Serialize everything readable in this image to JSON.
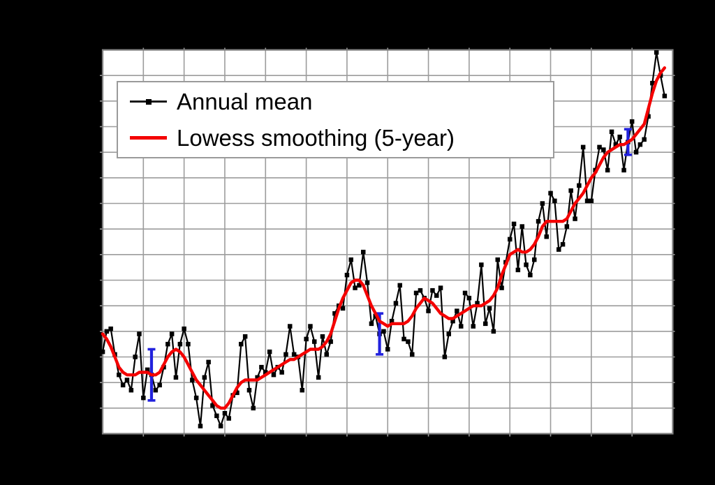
{
  "window": {
    "background": "#000000"
  },
  "colors": {
    "page_bg": "#000000",
    "plot_bg": "#ffffff",
    "grid": "#9c9c9c",
    "frame": "#7f7f7f",
    "annual": "#000000",
    "lowess": "#f40000",
    "error_bar": "#2222dd"
  },
  "chart_data": {
    "type": "line",
    "grid": true,
    "legend_position": "top-left",
    "x_range": [
      1880,
      2020
    ],
    "x_grid_step": 10,
    "y_range": [
      -0.5,
      1.0
    ],
    "y_grid_step": 0.1,
    "x": [
      1880,
      1881,
      1882,
      1883,
      1884,
      1885,
      1886,
      1887,
      1888,
      1889,
      1890,
      1891,
      1892,
      1893,
      1894,
      1895,
      1896,
      1897,
      1898,
      1899,
      1900,
      1901,
      1902,
      1903,
      1904,
      1905,
      1906,
      1907,
      1908,
      1909,
      1910,
      1911,
      1912,
      1913,
      1914,
      1915,
      1916,
      1917,
      1918,
      1919,
      1920,
      1921,
      1922,
      1923,
      1924,
      1925,
      1926,
      1927,
      1928,
      1929,
      1930,
      1931,
      1932,
      1933,
      1934,
      1935,
      1936,
      1937,
      1938,
      1939,
      1940,
      1941,
      1942,
      1943,
      1944,
      1945,
      1946,
      1947,
      1948,
      1949,
      1950,
      1951,
      1952,
      1953,
      1954,
      1955,
      1956,
      1957,
      1958,
      1959,
      1960,
      1961,
      1962,
      1963,
      1964,
      1965,
      1966,
      1967,
      1968,
      1969,
      1970,
      1971,
      1972,
      1973,
      1974,
      1975,
      1976,
      1977,
      1978,
      1979,
      1980,
      1981,
      1982,
      1983,
      1984,
      1985,
      1986,
      1987,
      1988,
      1989,
      1990,
      1991,
      1992,
      1993,
      1994,
      1995,
      1996,
      1997,
      1998,
      1999,
      2000,
      2001,
      2002,
      2003,
      2004,
      2005,
      2006,
      2007,
      2008,
      2009,
      2010,
      2011,
      2012,
      2013,
      2014,
      2015,
      2016,
      2017,
      2018
    ],
    "series": [
      {
        "name": "Annual mean",
        "color": "#000000",
        "marker": "square",
        "values": [
          -0.18,
          -0.1,
          -0.09,
          -0.19,
          -0.27,
          -0.31,
          -0.29,
          -0.33,
          -0.2,
          -0.11,
          -0.36,
          -0.25,
          -0.27,
          -0.33,
          -0.31,
          -0.24,
          -0.15,
          -0.11,
          -0.28,
          -0.15,
          -0.09,
          -0.15,
          -0.29,
          -0.36,
          -0.47,
          -0.28,
          -0.22,
          -0.39,
          -0.43,
          -0.47,
          -0.42,
          -0.44,
          -0.35,
          -0.34,
          -0.15,
          -0.12,
          -0.33,
          -0.4,
          -0.28,
          -0.24,
          -0.26,
          -0.18,
          -0.27,
          -0.24,
          -0.26,
          -0.19,
          -0.08,
          -0.19,
          -0.2,
          -0.33,
          -0.13,
          -0.08,
          -0.14,
          -0.28,
          -0.12,
          -0.19,
          -0.14,
          -0.03,
          0.0,
          -0.01,
          0.12,
          0.18,
          0.07,
          0.08,
          0.21,
          0.09,
          -0.07,
          -0.04,
          -0.11,
          -0.1,
          -0.17,
          -0.06,
          0.01,
          0.08,
          -0.13,
          -0.14,
          -0.19,
          0.05,
          0.06,
          0.03,
          -0.02,
          0.06,
          0.04,
          0.07,
          -0.2,
          -0.11,
          -0.06,
          -0.02,
          -0.08,
          0.05,
          0.03,
          -0.08,
          0.01,
          0.16,
          -0.07,
          -0.01,
          -0.1,
          0.18,
          0.07,
          0.17,
          0.26,
          0.32,
          0.14,
          0.31,
          0.16,
          0.12,
          0.18,
          0.33,
          0.4,
          0.27,
          0.44,
          0.41,
          0.22,
          0.24,
          0.31,
          0.45,
          0.34,
          0.47,
          0.62,
          0.41,
          0.41,
          0.53,
          0.62,
          0.61,
          0.53,
          0.68,
          0.63,
          0.66,
          0.53,
          0.64,
          0.72,
          0.6,
          0.63,
          0.65,
          0.74,
          0.87,
          0.99,
          0.9,
          0.82
        ]
      },
      {
        "name": "Lowess smoothing (5-year)",
        "color": "#f40000",
        "marker": "none",
        "values": [
          -0.11,
          -0.13,
          -0.16,
          -0.2,
          -0.24,
          -0.26,
          -0.27,
          -0.27,
          -0.27,
          -0.26,
          -0.26,
          -0.26,
          -0.27,
          -0.27,
          -0.26,
          -0.23,
          -0.2,
          -0.18,
          -0.17,
          -0.18,
          -0.2,
          -0.23,
          -0.26,
          -0.29,
          -0.31,
          -0.33,
          -0.35,
          -0.37,
          -0.39,
          -0.4,
          -0.4,
          -0.38,
          -0.35,
          -0.32,
          -0.3,
          -0.29,
          -0.29,
          -0.29,
          -0.29,
          -0.28,
          -0.27,
          -0.26,
          -0.25,
          -0.24,
          -0.23,
          -0.22,
          -0.21,
          -0.21,
          -0.2,
          -0.19,
          -0.18,
          -0.17,
          -0.17,
          -0.17,
          -0.16,
          -0.14,
          -0.11,
          -0.06,
          -0.01,
          0.03,
          0.06,
          0.09,
          0.1,
          0.1,
          0.08,
          0.04,
          0.0,
          -0.03,
          -0.06,
          -0.07,
          -0.08,
          -0.07,
          -0.07,
          -0.07,
          -0.07,
          -0.06,
          -0.04,
          -0.01,
          0.01,
          0.03,
          0.02,
          0.01,
          -0.01,
          -0.03,
          -0.04,
          -0.05,
          -0.05,
          -0.04,
          -0.03,
          -0.02,
          -0.01,
          0.0,
          0.0,
          0.0,
          0.01,
          0.02,
          0.04,
          0.07,
          0.12,
          0.16,
          0.2,
          0.21,
          0.22,
          0.21,
          0.21,
          0.22,
          0.24,
          0.27,
          0.31,
          0.33,
          0.33,
          0.33,
          0.33,
          0.33,
          0.34,
          0.37,
          0.4,
          0.42,
          0.44,
          0.47,
          0.5,
          0.52,
          0.55,
          0.58,
          0.6,
          0.61,
          0.62,
          0.63,
          0.63,
          0.64,
          0.65,
          0.67,
          0.69,
          0.71,
          0.77,
          0.83,
          0.88,
          0.91,
          0.93
        ]
      }
    ],
    "error_bars": [
      {
        "x": 1892,
        "value": -0.27,
        "ci": 0.1
      },
      {
        "x": 1948,
        "value": -0.11,
        "ci": 0.08
      },
      {
        "x": 2009,
        "value": 0.64,
        "ci": 0.05
      }
    ]
  }
}
